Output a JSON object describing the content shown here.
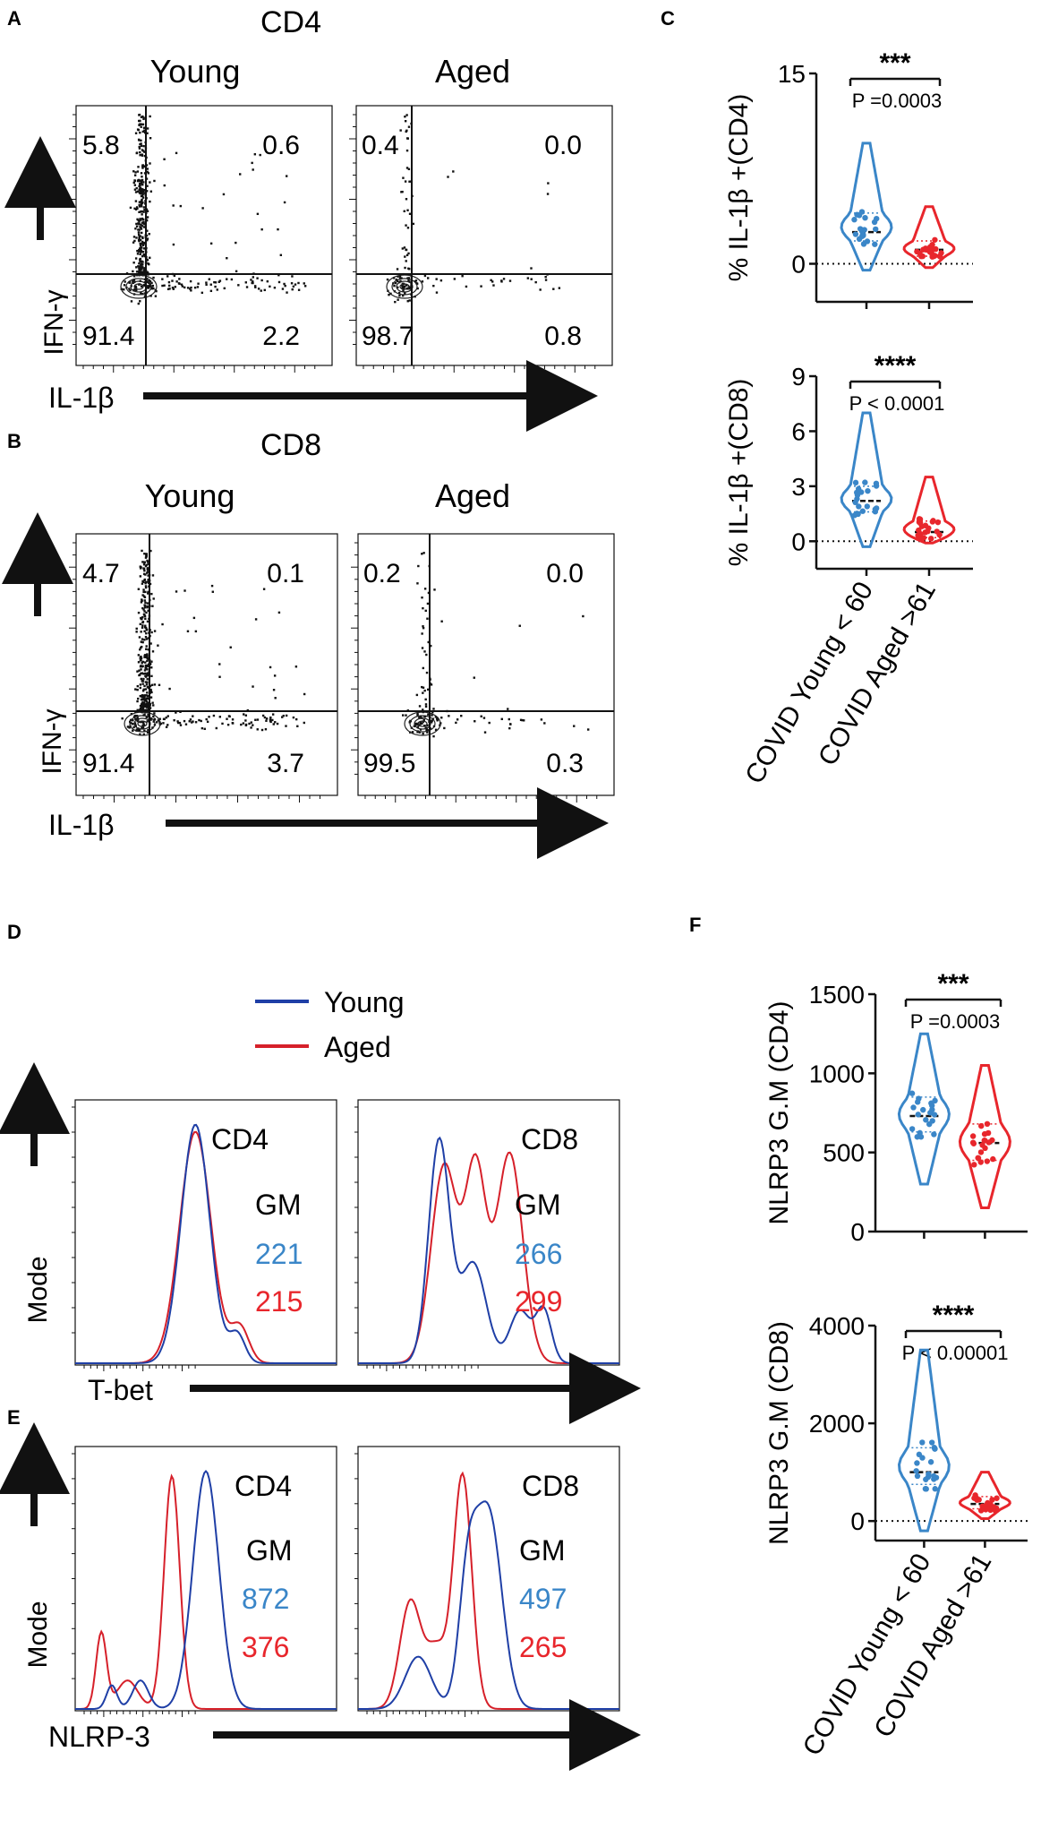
{
  "panel_letters": {
    "A": "A",
    "B": "B",
    "C": "C",
    "D": "D",
    "E": "E",
    "F": "F"
  },
  "colors": {
    "young": "#3a86c8",
    "aged": "#e8262c",
    "young_line": "#1f3fa6",
    "aged_line": "#d6202a",
    "text": "#111111"
  },
  "panelA": {
    "title": "CD4",
    "xlabel": "IL-1β",
    "ylabel": "IFN-γ",
    "plots": [
      {
        "label": "Young",
        "q": [
          "5.8",
          "0.6",
          "91.4",
          "2.2"
        ]
      },
      {
        "label": "Aged",
        "q": [
          "0.4",
          "0.0",
          "98.7",
          "0.8"
        ]
      }
    ]
  },
  "panelB": {
    "title": "CD8",
    "xlabel": "IL-1β",
    "ylabel": "IFN-γ",
    "plots": [
      {
        "label": "Young",
        "q": [
          "4.7",
          "0.1",
          "91.4",
          "3.7"
        ]
      },
      {
        "label": "Aged",
        "q": [
          "0.2",
          "0.0",
          "99.5",
          "0.3"
        ]
      }
    ]
  },
  "panelD": {
    "legend": [
      "Young",
      "Aged"
    ],
    "xlabel": "T-bet",
    "ylabel": "Mode",
    "gm_label": "GM",
    "plots": [
      {
        "cell": "CD4",
        "gm_young": "221",
        "gm_aged": "215"
      },
      {
        "cell": "CD8",
        "gm_young": "266",
        "gm_aged": "299"
      }
    ]
  },
  "panelE": {
    "xlabel": "NLRP-3",
    "ylabel": "Mode",
    "gm_label": "GM",
    "plots": [
      {
        "cell": "CD4",
        "gm_young": "872",
        "gm_aged": "376"
      },
      {
        "cell": "CD8",
        "gm_young": "497",
        "gm_aged": "265"
      }
    ]
  },
  "chart_data": [
    {
      "id": "C1",
      "type": "violin",
      "ylabel": "% IL-1β +(CD4)",
      "ylim": [
        -3,
        15
      ],
      "yticks": [
        0,
        15
      ],
      "significance": "***",
      "pvalue": "P =0.0003",
      "categories": [
        "COVID Young < 60",
        "COVID Aged >61"
      ],
      "series": [
        {
          "name": "COVID Young < 60",
          "median": 2.5,
          "q1": 1.8,
          "q3": 4.0,
          "min": -0.5,
          "max": 9.5
        },
        {
          "name": "COVID Aged >61",
          "median": 1.1,
          "q1": 0.6,
          "q3": 1.8,
          "min": -0.3,
          "max": 4.5
        }
      ]
    },
    {
      "id": "C2",
      "type": "violin",
      "ylabel": "% IL-1β +(CD8)",
      "ylim": [
        -1.5,
        9
      ],
      "yticks": [
        0,
        3,
        6,
        9
      ],
      "significance": "****",
      "pvalue": "P < 0.0001",
      "categories": [
        "COVID Young < 60",
        "COVID Aged >61"
      ],
      "xticklabels": [
        "COVID Young < 60",
        "COVID Aged >61"
      ],
      "series": [
        {
          "name": "COVID Young < 60",
          "median": 2.2,
          "q1": 1.6,
          "q3": 3.0,
          "min": -0.3,
          "max": 7.0
        },
        {
          "name": "COVID Aged >61",
          "median": 0.5,
          "q1": 0.2,
          "q3": 1.1,
          "min": -0.1,
          "max": 3.5
        }
      ]
    },
    {
      "id": "F1",
      "type": "violin",
      "ylabel": "NLRP3 G.M (CD4)",
      "ylim": [
        0,
        1500
      ],
      "yticks": [
        0,
        500,
        1000,
        1500
      ],
      "significance": "***",
      "pvalue": "P =0.0003",
      "categories": [
        "COVID Young < 60",
        "COVID Aged >61"
      ],
      "series": [
        {
          "name": "COVID Young < 60",
          "median": 730,
          "q1": 630,
          "q3": 850,
          "min": 300,
          "max": 1250
        },
        {
          "name": "COVID Aged >61",
          "median": 560,
          "q1": 450,
          "q3": 680,
          "min": 150,
          "max": 1050
        }
      ]
    },
    {
      "id": "F2",
      "type": "violin",
      "ylabel": "NLRP3 G.M (CD8)",
      "ylim": [
        -400,
        4000
      ],
      "yticks": [
        0,
        2000,
        4000
      ],
      "significance": "****",
      "pvalue": "P < 0.00001",
      "categories": [
        "COVID Young < 60",
        "COVID Aged >61"
      ],
      "xticklabels": [
        "COVID Young < 60",
        "COVID Aged >61"
      ],
      "series": [
        {
          "name": "COVID Young < 60",
          "median": 1000,
          "q1": 750,
          "q3": 1500,
          "min": -200,
          "max": 3500
        },
        {
          "name": "COVID Aged >61",
          "median": 350,
          "q1": 250,
          "q3": 500,
          "min": 50,
          "max": 1000
        }
      ]
    }
  ]
}
